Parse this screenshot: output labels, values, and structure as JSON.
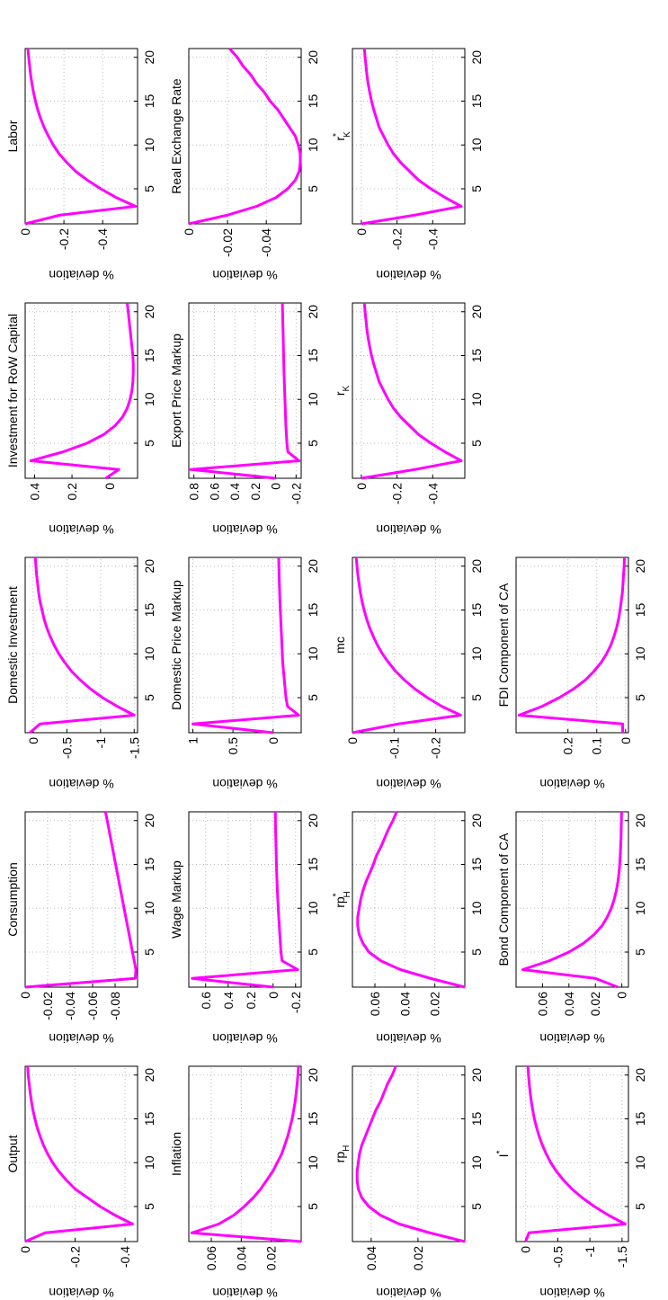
{
  "chart_data": [
    {
      "type": "line",
      "title": "Output",
      "ylabel": "% deviation",
      "x": [
        1,
        2,
        3,
        4,
        5,
        6,
        7,
        8,
        9,
        10,
        11,
        12,
        13,
        14,
        15,
        16,
        17,
        18,
        19,
        20,
        21
      ],
      "xlim": [
        1,
        21
      ],
      "xticks": [
        5,
        10,
        15,
        20
      ],
      "ylim": [
        -0.45,
        0
      ],
      "yticks": [
        -0.4,
        -0.2,
        0
      ],
      "grid": true,
      "color": "#ff00ff",
      "values": [
        0,
        -0.08,
        -0.43,
        -0.36,
        -0.3,
        -0.25,
        -0.2,
        -0.165,
        -0.135,
        -0.11,
        -0.09,
        -0.073,
        -0.06,
        -0.048,
        -0.039,
        -0.031,
        -0.025,
        -0.02,
        -0.016,
        -0.012,
        -0.01
      ]
    },
    {
      "type": "line",
      "title": "Consumption",
      "ylabel": "% deviation",
      "x": [
        1,
        2,
        3,
        4,
        5,
        6,
        7,
        8,
        9,
        10,
        11,
        12,
        13,
        14,
        15,
        16,
        17,
        18,
        19,
        20,
        21
      ],
      "xlim": [
        1,
        21
      ],
      "xticks": [
        5,
        10,
        15,
        20
      ],
      "ylim": [
        -0.1,
        0
      ],
      "yticks": [
        -0.08,
        -0.06,
        -0.04,
        -0.02,
        0
      ],
      "grid": true,
      "color": "#ff00ff",
      "values": [
        0,
        -0.098,
        -0.0985,
        -0.097,
        -0.0955,
        -0.094,
        -0.0925,
        -0.091,
        -0.0895,
        -0.088,
        -0.0865,
        -0.085,
        -0.0835,
        -0.082,
        -0.0805,
        -0.079,
        -0.0775,
        -0.076,
        -0.0745,
        -0.073,
        -0.0715
      ]
    },
    {
      "type": "line",
      "title": "Domestic Investment",
      "ylabel": "% deviation",
      "x": [
        1,
        2,
        3,
        4,
        5,
        6,
        7,
        8,
        9,
        10,
        11,
        12,
        13,
        14,
        15,
        16,
        17,
        18,
        19,
        20,
        21
      ],
      "xlim": [
        1,
        21
      ],
      "xticks": [
        5,
        10,
        15,
        20
      ],
      "ylim": [
        -1.55,
        0.12
      ],
      "yticks": [
        -1.5,
        -1,
        -0.5,
        0
      ],
      "grid": true,
      "color": "#ff00ff",
      "values": [
        0.05,
        -0.1,
        -1.5,
        -1.25,
        -1.03,
        -0.85,
        -0.7,
        -0.57,
        -0.47,
        -0.38,
        -0.31,
        -0.25,
        -0.2,
        -0.16,
        -0.13,
        -0.1,
        -0.08,
        -0.065,
        -0.05,
        -0.04,
        -0.03
      ]
    },
    {
      "type": "line",
      "title": "Investment for RoW Capital",
      "ylabel": "% deviation",
      "x": [
        1,
        2,
        3,
        4,
        5,
        6,
        7,
        8,
        9,
        10,
        11,
        12,
        13,
        14,
        15,
        16,
        17,
        18,
        19,
        20,
        21
      ],
      "xlim": [
        1,
        21
      ],
      "xticks": [
        5,
        10,
        15,
        20
      ],
      "ylim": [
        -0.15,
        0.45
      ],
      "yticks": [
        0,
        0.2,
        0.4
      ],
      "grid": true,
      "color": "#ff00ff",
      "values": [
        0.02,
        -0.05,
        0.42,
        0.25,
        0.12,
        0.03,
        -0.03,
        -0.07,
        -0.095,
        -0.11,
        -0.12,
        -0.125,
        -0.127,
        -0.127,
        -0.125,
        -0.12,
        -0.115,
        -0.11,
        -0.105,
        -0.1,
        -0.095
      ]
    },
    {
      "type": "line",
      "title": "Labor",
      "ylabel": "% deviation",
      "x": [
        1,
        2,
        3,
        4,
        5,
        6,
        7,
        8,
        9,
        10,
        11,
        12,
        13,
        14,
        15,
        16,
        17,
        18,
        19,
        20,
        21
      ],
      "xlim": [
        1,
        21
      ],
      "xticks": [
        5,
        10,
        15,
        20
      ],
      "ylim": [
        -0.58,
        0
      ],
      "yticks": [
        -0.4,
        -0.2,
        0
      ],
      "grid": true,
      "color": "#ff00ff",
      "values": [
        0,
        -0.18,
        -0.57,
        -0.47,
        -0.39,
        -0.32,
        -0.26,
        -0.215,
        -0.175,
        -0.145,
        -0.12,
        -0.098,
        -0.08,
        -0.065,
        -0.053,
        -0.043,
        -0.035,
        -0.028,
        -0.023,
        -0.018,
        -0.014
      ]
    },
    {
      "type": "line",
      "title": "Inflation",
      "ylabel": "% deviation",
      "x": [
        1,
        2,
        3,
        4,
        5,
        6,
        7,
        8,
        9,
        10,
        11,
        12,
        13,
        14,
        15,
        16,
        17,
        18,
        19,
        20,
        21
      ],
      "xlim": [
        1,
        21
      ],
      "xticks": [
        5,
        10,
        15,
        20
      ],
      "ylim": [
        0,
        0.075
      ],
      "yticks": [
        0.02,
        0.04,
        0.06
      ],
      "grid": true,
      "color": "#ff00ff",
      "values": [
        0,
        0.073,
        0.055,
        0.045,
        0.038,
        0.032,
        0.027,
        0.023,
        0.019,
        0.016,
        0.013,
        0.011,
        0.009,
        0.0075,
        0.006,
        0.005,
        0.004,
        0.0033,
        0.0027,
        0.0022,
        0.0018
      ]
    },
    {
      "type": "line",
      "title": "Wage Markup",
      "ylabel": "% deviation",
      "x": [
        1,
        2,
        3,
        4,
        5,
        6,
        7,
        8,
        9,
        10,
        11,
        12,
        13,
        14,
        15,
        16,
        17,
        18,
        19,
        20,
        21
      ],
      "xlim": [
        1,
        21
      ],
      "xticks": [
        5,
        10,
        15,
        20
      ],
      "ylim": [
        -0.25,
        0.75
      ],
      "yticks": [
        -0.2,
        0,
        0.2,
        0.4,
        0.6
      ],
      "grid": true,
      "color": "#ff00ff",
      "values": [
        0,
        0.72,
        -0.22,
        -0.08,
        -0.07,
        -0.065,
        -0.06,
        -0.055,
        -0.05,
        -0.046,
        -0.042,
        -0.038,
        -0.035,
        -0.032,
        -0.03,
        -0.028,
        -0.026,
        -0.024,
        -0.022,
        -0.021,
        -0.02
      ]
    },
    {
      "type": "line",
      "title": "Domestic Price Markup",
      "ylabel": "% deviation",
      "x": [
        1,
        2,
        3,
        4,
        5,
        6,
        7,
        8,
        9,
        10,
        11,
        12,
        13,
        14,
        15,
        16,
        17,
        18,
        19,
        20,
        21
      ],
      "xlim": [
        1,
        21
      ],
      "xticks": [
        5,
        10,
        15,
        20
      ],
      "ylim": [
        -0.35,
        1.05
      ],
      "yticks": [
        0,
        0.5,
        1
      ],
      "grid": true,
      "color": "#ff00ff",
      "values": [
        0,
        1.0,
        -0.32,
        -0.18,
        -0.16,
        -0.15,
        -0.14,
        -0.13,
        -0.12,
        -0.115,
        -0.11,
        -0.105,
        -0.1,
        -0.095,
        -0.09,
        -0.085,
        -0.082,
        -0.078,
        -0.075,
        -0.072,
        -0.07
      ]
    },
    {
      "type": "line",
      "title": "Export Price Markup",
      "ylabel": "% deviation",
      "x": [
        1,
        2,
        3,
        4,
        5,
        6,
        7,
        8,
        9,
        10,
        11,
        12,
        13,
        14,
        15,
        16,
        17,
        18,
        19,
        20,
        21
      ],
      "xlim": [
        1,
        21
      ],
      "xticks": [
        5,
        10,
        15,
        20
      ],
      "ylim": [
        -0.25,
        0.85
      ],
      "yticks": [
        -0.2,
        0,
        0.2,
        0.4,
        0.6,
        0.8
      ],
      "grid": true,
      "color": "#ff00ff",
      "values": [
        0,
        0.83,
        -0.23,
        -0.12,
        -0.11,
        -0.105,
        -0.1,
        -0.097,
        -0.094,
        -0.091,
        -0.088,
        -0.085,
        -0.082,
        -0.08,
        -0.078,
        -0.076,
        -0.074,
        -0.072,
        -0.07,
        -0.068,
        -0.066
      ]
    },
    {
      "type": "line",
      "title": "Real Exchange Rate",
      "ylabel": "% deviation",
      "x": [
        1,
        2,
        3,
        4,
        5,
        6,
        7,
        8,
        9,
        10,
        11,
        12,
        13,
        14,
        15,
        16,
        17,
        18,
        19,
        20,
        21
      ],
      "xlim": [
        1,
        21
      ],
      "xticks": [
        5,
        10,
        15,
        20
      ],
      "ylim": [
        -0.058,
        0
      ],
      "yticks": [
        -0.04,
        -0.02,
        0
      ],
      "grid": true,
      "color": "#ff00ff",
      "values": [
        0,
        -0.02,
        -0.035,
        -0.045,
        -0.051,
        -0.055,
        -0.057,
        -0.0575,
        -0.0575,
        -0.0565,
        -0.055,
        -0.052,
        -0.049,
        -0.046,
        -0.042,
        -0.039,
        -0.035,
        -0.032,
        -0.028,
        -0.025,
        -0.021
      ]
    },
    {
      "type": "line",
      "title": "rp",
      "title_sub": "H",
      "ylabel": "% deviation",
      "x": [
        1,
        2,
        3,
        4,
        5,
        6,
        7,
        8,
        9,
        10,
        11,
        12,
        13,
        14,
        15,
        16,
        17,
        18,
        19,
        20,
        21
      ],
      "xlim": [
        1,
        21
      ],
      "xticks": [
        5,
        10,
        15,
        20
      ],
      "ylim": [
        0,
        0.048
      ],
      "yticks": [
        0.02,
        0.04
      ],
      "grid": true,
      "color": "#ff00ff",
      "values": [
        0,
        0.015,
        0.028,
        0.036,
        0.041,
        0.044,
        0.0455,
        0.046,
        0.046,
        0.0455,
        0.045,
        0.044,
        0.0425,
        0.041,
        0.0395,
        0.038,
        0.036,
        0.0345,
        0.033,
        0.031,
        0.0295
      ]
    },
    {
      "type": "line",
      "title": "rp",
      "title_sup": "*",
      "title_sub": "H",
      "ylabel": "% deviation",
      "x": [
        1,
        2,
        3,
        4,
        5,
        6,
        7,
        8,
        9,
        10,
        11,
        12,
        13,
        14,
        15,
        16,
        17,
        18,
        19,
        20,
        21
      ],
      "xlim": [
        1,
        21
      ],
      "xticks": [
        5,
        10,
        15,
        20
      ],
      "ylim": [
        0,
        0.075
      ],
      "yticks": [
        0.02,
        0.04,
        0.06
      ],
      "grid": true,
      "color": "#ff00ff",
      "values": [
        0,
        0.023,
        0.043,
        0.056,
        0.064,
        0.068,
        0.0705,
        0.0715,
        0.0715,
        0.0705,
        0.0695,
        0.068,
        0.066,
        0.0635,
        0.061,
        0.059,
        0.056,
        0.0535,
        0.051,
        0.048,
        0.0455
      ]
    },
    {
      "type": "line",
      "title": "mc",
      "ylabel": "% deviation",
      "x": [
        1,
        2,
        3,
        4,
        5,
        6,
        7,
        8,
        9,
        10,
        11,
        12,
        13,
        14,
        15,
        16,
        17,
        18,
        19,
        20,
        21
      ],
      "xlim": [
        1,
        21
      ],
      "xticks": [
        5,
        10,
        15,
        20
      ],
      "ylim": [
        -0.27,
        0
      ],
      "yticks": [
        -0.2,
        -0.1,
        0
      ],
      "grid": true,
      "color": "#ff00ff",
      "values": [
        0,
        -0.11,
        -0.26,
        -0.215,
        -0.18,
        -0.15,
        -0.125,
        -0.104,
        -0.087,
        -0.072,
        -0.06,
        -0.05,
        -0.041,
        -0.034,
        -0.028,
        -0.023,
        -0.019,
        -0.016,
        -0.013,
        -0.011,
        -0.009
      ]
    },
    {
      "type": "line",
      "title": "r",
      "title_sub": "K",
      "ylabel": "% deviation",
      "x": [
        1,
        2,
        3,
        4,
        5,
        6,
        7,
        8,
        9,
        10,
        11,
        12,
        13,
        14,
        15,
        16,
        17,
        18,
        19,
        20,
        21
      ],
      "xlim": [
        1,
        21
      ],
      "xticks": [
        5,
        10,
        15,
        20
      ],
      "ylim": [
        -0.58,
        0.05
      ],
      "yticks": [
        -0.4,
        -0.2,
        0
      ],
      "grid": true,
      "color": "#ff00ff",
      "values": [
        0,
        -0.3,
        -0.56,
        -0.47,
        -0.39,
        -0.32,
        -0.27,
        -0.22,
        -0.18,
        -0.15,
        -0.125,
        -0.1,
        -0.085,
        -0.07,
        -0.057,
        -0.047,
        -0.038,
        -0.031,
        -0.026,
        -0.021,
        -0.017
      ]
    },
    {
      "type": "line",
      "title": "r",
      "title_sup": "*",
      "title_sub": "K",
      "ylabel": "% deviation",
      "x": [
        1,
        2,
        3,
        4,
        5,
        6,
        7,
        8,
        9,
        10,
        11,
        12,
        13,
        14,
        15,
        16,
        17,
        18,
        19,
        20,
        21
      ],
      "xlim": [
        1,
        21
      ],
      "xticks": [
        5,
        10,
        15,
        20
      ],
      "ylim": [
        -0.58,
        0.05
      ],
      "yticks": [
        -0.4,
        -0.2,
        0
      ],
      "grid": true,
      "color": "#ff00ff",
      "values": [
        0,
        -0.3,
        -0.56,
        -0.47,
        -0.39,
        -0.32,
        -0.27,
        -0.22,
        -0.18,
        -0.15,
        -0.125,
        -0.1,
        -0.085,
        -0.07,
        -0.057,
        -0.047,
        -0.038,
        -0.031,
        -0.026,
        -0.021,
        -0.017
      ]
    },
    {
      "type": "line",
      "title": "I",
      "title_sup": "*",
      "ylabel": "% deviation",
      "x": [
        1,
        2,
        3,
        4,
        5,
        6,
        7,
        8,
        9,
        10,
        11,
        12,
        13,
        14,
        15,
        16,
        17,
        18,
        19,
        20,
        21
      ],
      "xlim": [
        1,
        21
      ],
      "xticks": [
        5,
        10,
        15,
        20
      ],
      "ylim": [
        -1.6,
        0.15
      ],
      "yticks": [
        -1.5,
        -1,
        -0.5,
        0
      ],
      "grid": true,
      "color": "#ff00ff",
      "values": [
        0,
        -0.05,
        -1.55,
        -1.29,
        -1.07,
        -0.88,
        -0.72,
        -0.59,
        -0.48,
        -0.39,
        -0.32,
        -0.26,
        -0.21,
        -0.17,
        -0.135,
        -0.11,
        -0.087,
        -0.07,
        -0.055,
        -0.044,
        -0.035
      ]
    },
    {
      "type": "line",
      "title": "Bond Component of CA",
      "ylabel": "% deviation",
      "x": [
        1,
        2,
        3,
        4,
        5,
        6,
        7,
        8,
        9,
        10,
        11,
        12,
        13,
        14,
        15,
        16,
        17,
        18,
        19,
        20,
        21
      ],
      "xlim": [
        1,
        21
      ],
      "xticks": [
        5,
        10,
        15,
        20
      ],
      "ylim": [
        -0.005,
        0.08
      ],
      "yticks": [
        0,
        0.02,
        0.04,
        0.06
      ],
      "grid": true,
      "color": "#ff00ff",
      "values": [
        0.003,
        0.02,
        0.075,
        0.055,
        0.04,
        0.029,
        0.021,
        0.015,
        0.011,
        0.008,
        0.0058,
        0.0042,
        0.003,
        0.0022,
        0.0016,
        0.0012,
        0.0009,
        0.0006,
        0.0005,
        0.0003,
        0.0002
      ]
    },
    {
      "type": "line",
      "title": "FDI Component of CA",
      "ylabel": "% deviation",
      "x": [
        1,
        2,
        3,
        4,
        5,
        6,
        7,
        8,
        9,
        10,
        11,
        12,
        13,
        14,
        15,
        16,
        17,
        18,
        19,
        20,
        21
      ],
      "xlim": [
        1,
        21
      ],
      "xticks": [
        5,
        10,
        15,
        20
      ],
      "ylim": [
        -0.01,
        0.38
      ],
      "yticks": [
        0,
        0.1,
        0.2
      ],
      "grid": true,
      "color": "#ff00ff",
      "values": [
        0.01,
        0.01,
        0.37,
        0.29,
        0.23,
        0.18,
        0.14,
        0.11,
        0.085,
        0.066,
        0.051,
        0.04,
        0.031,
        0.024,
        0.019,
        0.015,
        0.011,
        0.009,
        0.007,
        0.005,
        0.004
      ]
    }
  ]
}
